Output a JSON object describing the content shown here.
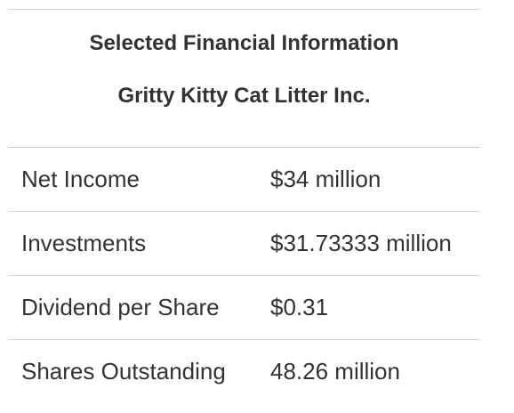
{
  "header": {
    "title": "Selected Financial Information",
    "company": "Gritty Kitty Cat Litter Inc."
  },
  "rows": [
    {
      "label": "Net Income",
      "value": "$34 million"
    },
    {
      "label": "Investments",
      "value": "$31.73333 million"
    },
    {
      "label": "Dividend per Share",
      "value": "$0.31"
    },
    {
      "label": "Shares Outstanding",
      "value": "48.26 million"
    }
  ]
}
